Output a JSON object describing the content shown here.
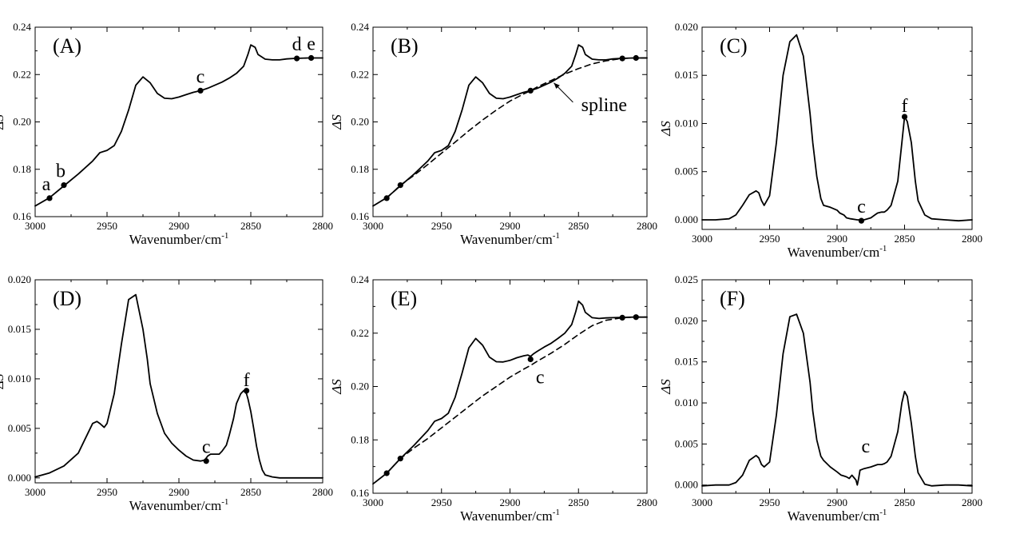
{
  "chart_data": [
    {
      "panel": "(A)",
      "type": "line",
      "xlabel": "Wavenumber/cm",
      "xlabel_sup": "-1",
      "ylabel": "ΔS",
      "xlim": [
        3000,
        2800
      ],
      "ylim": [
        0.16,
        0.24
      ],
      "xticks": [
        3000,
        2950,
        2900,
        2850,
        2800
      ],
      "yticks": [
        0.16,
        0.18,
        0.2,
        0.22,
        0.24
      ],
      "ytick_labels": [
        "0.16",
        "0.18",
        "0.20",
        "0.22",
        "0.24"
      ],
      "series": [
        {
          "style": "solid",
          "x": [
            3000,
            2990,
            2980,
            2970,
            2960,
            2955,
            2950,
            2945,
            2940,
            2935,
            2930,
            2925,
            2920,
            2915,
            2910,
            2905,
            2900,
            2895,
            2890,
            2885,
            2880,
            2875,
            2870,
            2865,
            2860,
            2855,
            2852,
            2850,
            2847,
            2845,
            2840,
            2835,
            2830,
            2825,
            2820,
            2810,
            2800
          ],
          "y": [
            0.1645,
            0.168,
            0.173,
            0.178,
            0.1835,
            0.187,
            0.188,
            0.19,
            0.196,
            0.205,
            0.2155,
            0.219,
            0.2165,
            0.212,
            0.21,
            0.2098,
            0.2105,
            0.2115,
            0.2125,
            0.2132,
            0.2142,
            0.2155,
            0.2168,
            0.2185,
            0.2205,
            0.2235,
            0.2285,
            0.2325,
            0.2315,
            0.2285,
            0.2265,
            0.2262,
            0.2262,
            0.2266,
            0.2268,
            0.227,
            0.227
          ]
        }
      ],
      "points": [
        {
          "label": "a",
          "x": 2990,
          "y": 0.1678
        },
        {
          "label": "b",
          "x": 2980,
          "y": 0.1733
        },
        {
          "label": "c",
          "x": 2885,
          "y": 0.2132
        },
        {
          "label": "d",
          "x": 2818,
          "y": 0.2268
        },
        {
          "label": "e",
          "x": 2808,
          "y": 0.227
        }
      ]
    },
    {
      "panel": "(B)",
      "type": "line",
      "xlabel": "Wavenumber/cm",
      "xlabel_sup": "-1",
      "ylabel": "ΔS",
      "xlim": [
        3000,
        2800
      ],
      "ylim": [
        0.16,
        0.24
      ],
      "xticks": [
        3000,
        2950,
        2900,
        2850,
        2800
      ],
      "yticks": [
        0.16,
        0.18,
        0.2,
        0.22,
        0.24
      ],
      "ytick_labels": [
        "0.16",
        "0.18",
        "0.20",
        "0.22",
        "0.24"
      ],
      "annotation": "spline",
      "series": [
        {
          "style": "solid",
          "x": [
            3000,
            2990,
            2980,
            2970,
            2960,
            2955,
            2950,
            2945,
            2940,
            2935,
            2930,
            2925,
            2920,
            2915,
            2910,
            2905,
            2900,
            2895,
            2890,
            2885,
            2880,
            2875,
            2870,
            2865,
            2860,
            2855,
            2852,
            2850,
            2847,
            2845,
            2840,
            2835,
            2830,
            2825,
            2820,
            2810,
            2800
          ],
          "y": [
            0.1645,
            0.168,
            0.173,
            0.178,
            0.1835,
            0.187,
            0.188,
            0.19,
            0.196,
            0.205,
            0.2155,
            0.219,
            0.2165,
            0.212,
            0.21,
            0.2098,
            0.2105,
            0.2115,
            0.2125,
            0.2132,
            0.2142,
            0.2155,
            0.2168,
            0.2185,
            0.2205,
            0.2235,
            0.2285,
            0.2325,
            0.2315,
            0.2285,
            0.2265,
            0.2262,
            0.2262,
            0.2266,
            0.2268,
            0.227,
            0.227
          ]
        },
        {
          "style": "dashed",
          "x": [
            2990,
            2980,
            2970,
            2960,
            2950,
            2940,
            2930,
            2920,
            2910,
            2900,
            2890,
            2885,
            2880,
            2870,
            2860,
            2850,
            2840,
            2830,
            2818,
            2808,
            2800
          ],
          "y": [
            0.1678,
            0.1733,
            0.1775,
            0.182,
            0.1868,
            0.1915,
            0.1963,
            0.2008,
            0.205,
            0.2088,
            0.2118,
            0.2132,
            0.2148,
            0.2175,
            0.2202,
            0.2225,
            0.2245,
            0.2258,
            0.2268,
            0.227,
            0.227
          ]
        }
      ],
      "points": [
        {
          "x": 2990,
          "y": 0.1678
        },
        {
          "x": 2980,
          "y": 0.1733
        },
        {
          "x": 2885,
          "y": 0.2132
        },
        {
          "x": 2818,
          "y": 0.2268
        },
        {
          "x": 2808,
          "y": 0.227
        }
      ]
    },
    {
      "panel": "(C)",
      "type": "line",
      "xlabel": "Wavenumber/cm",
      "xlabel_sup": "-1",
      "ylabel": "ΔS",
      "xlim": [
        3000,
        2800
      ],
      "ylim": [
        -0.001,
        0.02
      ],
      "xticks": [
        3000,
        2950,
        2900,
        2850,
        2800
      ],
      "yticks": [
        0.0,
        0.005,
        0.01,
        0.015,
        0.02
      ],
      "ytick_labels": [
        "0.000",
        "0.005",
        "0.010",
        "0.015",
        "0.020"
      ],
      "series": [
        {
          "style": "solid",
          "x": [
            3000,
            2990,
            2980,
            2975,
            2970,
            2965,
            2960,
            2958,
            2956,
            2954,
            2950,
            2945,
            2940,
            2935,
            2930,
            2925,
            2920,
            2918,
            2915,
            2912,
            2910,
            2905,
            2900,
            2898,
            2895,
            2893,
            2890,
            2885,
            2880,
            2875,
            2872,
            2870,
            2867,
            2865,
            2863,
            2860,
            2855,
            2852,
            2850,
            2848,
            2845,
            2842,
            2840,
            2835,
            2830,
            2820,
            2810,
            2800
          ],
          "y": [
            0.0,
            0.0,
            0.0001,
            0.0005,
            0.0015,
            0.0026,
            0.003,
            0.0028,
            0.002,
            0.0015,
            0.0025,
            0.008,
            0.015,
            0.0185,
            0.0192,
            0.017,
            0.011,
            0.008,
            0.0045,
            0.0022,
            0.0015,
            0.0013,
            0.001,
            0.0007,
            0.0005,
            0.0002,
            0.0001,
            0.0,
            0.0,
            0.0002,
            0.0005,
            0.0007,
            0.0008,
            0.0008,
            0.001,
            0.0015,
            0.004,
            0.008,
            0.0107,
            0.0102,
            0.008,
            0.004,
            0.002,
            0.0005,
            0.0001,
            0.0,
            -0.0001,
            0.0
          ]
        }
      ],
      "points": [
        {
          "label": "c",
          "x": 2882,
          "y": -0.0001
        },
        {
          "label": "f",
          "x": 2850,
          "y": 0.0107
        }
      ]
    },
    {
      "panel": "(D)",
      "type": "line",
      "xlabel": "Wavenumber/cm",
      "xlabel_sup": "-1",
      "ylabel": "ΔS",
      "xlim": [
        3000,
        2800
      ],
      "ylim": [
        -0.0005,
        0.02
      ],
      "xticks": [
        3000,
        2950,
        2900,
        2850,
        2800
      ],
      "yticks": [
        0.0,
        0.005,
        0.01,
        0.015,
        0.02
      ],
      "ytick_labels": [
        "0.000",
        "0.005",
        "0.010",
        "0.015",
        "0.020"
      ],
      "series": [
        {
          "style": "solid",
          "x": [
            3000,
            2990,
            2980,
            2970,
            2965,
            2960,
            2957,
            2955,
            2952,
            2950,
            2945,
            2940,
            2935,
            2930,
            2925,
            2922,
            2920,
            2915,
            2910,
            2905,
            2900,
            2895,
            2890,
            2885,
            2882,
            2880,
            2878,
            2875,
            2872,
            2870,
            2867,
            2865,
            2862,
            2860,
            2857,
            2855,
            2853,
            2852,
            2850,
            2848,
            2846,
            2844,
            2842,
            2840,
            2835,
            2830,
            2820,
            2810,
            2800
          ],
          "y": [
            0.0001,
            0.0005,
            0.0012,
            0.0025,
            0.004,
            0.0055,
            0.0057,
            0.0055,
            0.0051,
            0.0055,
            0.0085,
            0.0135,
            0.018,
            0.0185,
            0.015,
            0.012,
            0.0095,
            0.0065,
            0.0045,
            0.0035,
            0.0028,
            0.0022,
            0.0018,
            0.0017,
            0.0018,
            0.0022,
            0.0024,
            0.0024,
            0.0024,
            0.0027,
            0.0033,
            0.0043,
            0.006,
            0.0075,
            0.0085,
            0.0088,
            0.0085,
            0.008,
            0.0067,
            0.005,
            0.0032,
            0.0018,
            0.0008,
            0.0003,
            0.0001,
            0.0,
            0.0,
            0.0,
            0.0
          ]
        }
      ],
      "points": [
        {
          "label": "c",
          "x": 2881,
          "y": 0.0017
        },
        {
          "label": "f",
          "x": 2853,
          "y": 0.0088
        }
      ]
    },
    {
      "panel": "(E)",
      "type": "line",
      "xlabel": "Wavenumber/cm",
      "xlabel_sup": "-1",
      "ylabel": "ΔS",
      "xlim": [
        3000,
        2800
      ],
      "ylim": [
        0.16,
        0.24
      ],
      "xticks": [
        3000,
        2950,
        2900,
        2850,
        2800
      ],
      "yticks": [
        0.16,
        0.18,
        0.2,
        0.22,
        0.24
      ],
      "ytick_labels": [
        "0.16",
        "0.18",
        "0.20",
        "0.22",
        "0.24"
      ],
      "series": [
        {
          "style": "solid",
          "x": [
            3000,
            2990,
            2980,
            2970,
            2960,
            2955,
            2950,
            2945,
            2940,
            2935,
            2930,
            2925,
            2920,
            2915,
            2910,
            2905,
            2900,
            2895,
            2890,
            2887,
            2885,
            2883,
            2880,
            2875,
            2870,
            2865,
            2860,
            2855,
            2852,
            2850,
            2847,
            2845,
            2840,
            2835,
            2830,
            2825,
            2820,
            2810,
            2800
          ],
          "y": [
            0.1635,
            0.1675,
            0.173,
            0.178,
            0.1835,
            0.187,
            0.188,
            0.19,
            0.196,
            0.205,
            0.2145,
            0.218,
            0.2155,
            0.211,
            0.2093,
            0.2092,
            0.2098,
            0.2108,
            0.2115,
            0.2118,
            0.2113,
            0.2122,
            0.2132,
            0.2148,
            0.2162,
            0.218,
            0.22,
            0.2232,
            0.228,
            0.232,
            0.2305,
            0.2278,
            0.2258,
            0.2255,
            0.2257,
            0.2258,
            0.2259,
            0.226,
            0.226
          ]
        },
        {
          "style": "dashed",
          "x": [
            2990,
            2980,
            2970,
            2960,
            2950,
            2940,
            2930,
            2920,
            2910,
            2900,
            2890,
            2885,
            2880,
            2870,
            2860,
            2850,
            2840,
            2830,
            2818,
            2808,
            2800
          ],
          "y": [
            0.1675,
            0.173,
            0.177,
            0.1805,
            0.1845,
            0.1885,
            0.1925,
            0.1965,
            0.2,
            0.2035,
            0.2065,
            0.2079,
            0.2095,
            0.2125,
            0.2158,
            0.2195,
            0.2228,
            0.2248,
            0.2258,
            0.226,
            0.226
          ]
        }
      ],
      "points": [
        {
          "x": 2990,
          "y": 0.1675
        },
        {
          "x": 2980,
          "y": 0.173
        },
        {
          "label": "c",
          "x": 2885,
          "y": 0.2102
        },
        {
          "x": 2818,
          "y": 0.2258
        },
        {
          "x": 2808,
          "y": 0.226
        }
      ]
    },
    {
      "panel": "(F)",
      "type": "line",
      "xlabel": "Wavenumber/cm",
      "xlabel_sup": "-1",
      "ylabel": "ΔS",
      "xlim": [
        3000,
        2800
      ],
      "ylim": [
        -0.001,
        0.025
      ],
      "xticks": [
        3000,
        2950,
        2900,
        2850,
        2800
      ],
      "yticks": [
        0.0,
        0.005,
        0.01,
        0.015,
        0.02,
        0.025
      ],
      "ytick_labels": [
        "0.000",
        "0.005",
        "0.010",
        "0.015",
        "0.020",
        "0.025"
      ],
      "series": [
        {
          "style": "solid",
          "x": [
            3000,
            2990,
            2980,
            2975,
            2970,
            2965,
            2960,
            2958,
            2956,
            2954,
            2950,
            2945,
            2940,
            2935,
            2930,
            2925,
            2920,
            2918,
            2915,
            2912,
            2910,
            2905,
            2900,
            2897,
            2895,
            2893,
            2891,
            2889,
            2887,
            2886,
            2885,
            2884,
            2883,
            2880,
            2875,
            2870,
            2867,
            2865,
            2863,
            2860,
            2855,
            2852,
            2850,
            2848,
            2845,
            2842,
            2840,
            2835,
            2830,
            2820,
            2810,
            2800
          ],
          "y": [
            -0.0001,
            0.0,
            0.0,
            0.0003,
            0.0012,
            0.003,
            0.0036,
            0.0033,
            0.0025,
            0.0022,
            0.0028,
            0.0085,
            0.016,
            0.0205,
            0.0208,
            0.0185,
            0.0125,
            0.009,
            0.0055,
            0.0035,
            0.003,
            0.0022,
            0.0016,
            0.0012,
            0.0011,
            0.001,
            0.0008,
            0.0012,
            0.0008,
            0.0006,
            0.0,
            0.0008,
            0.0018,
            0.002,
            0.0022,
            0.0025,
            0.0025,
            0.0026,
            0.0028,
            0.0035,
            0.0065,
            0.01,
            0.0114,
            0.0108,
            0.0075,
            0.0035,
            0.0015,
            0.0001,
            -0.0001,
            0.0,
            0.0,
            -0.0001
          ]
        }
      ],
      "points": [],
      "labels": [
        {
          "label": "c",
          "x": 2880,
          "y": 0.0028
        }
      ]
    }
  ]
}
